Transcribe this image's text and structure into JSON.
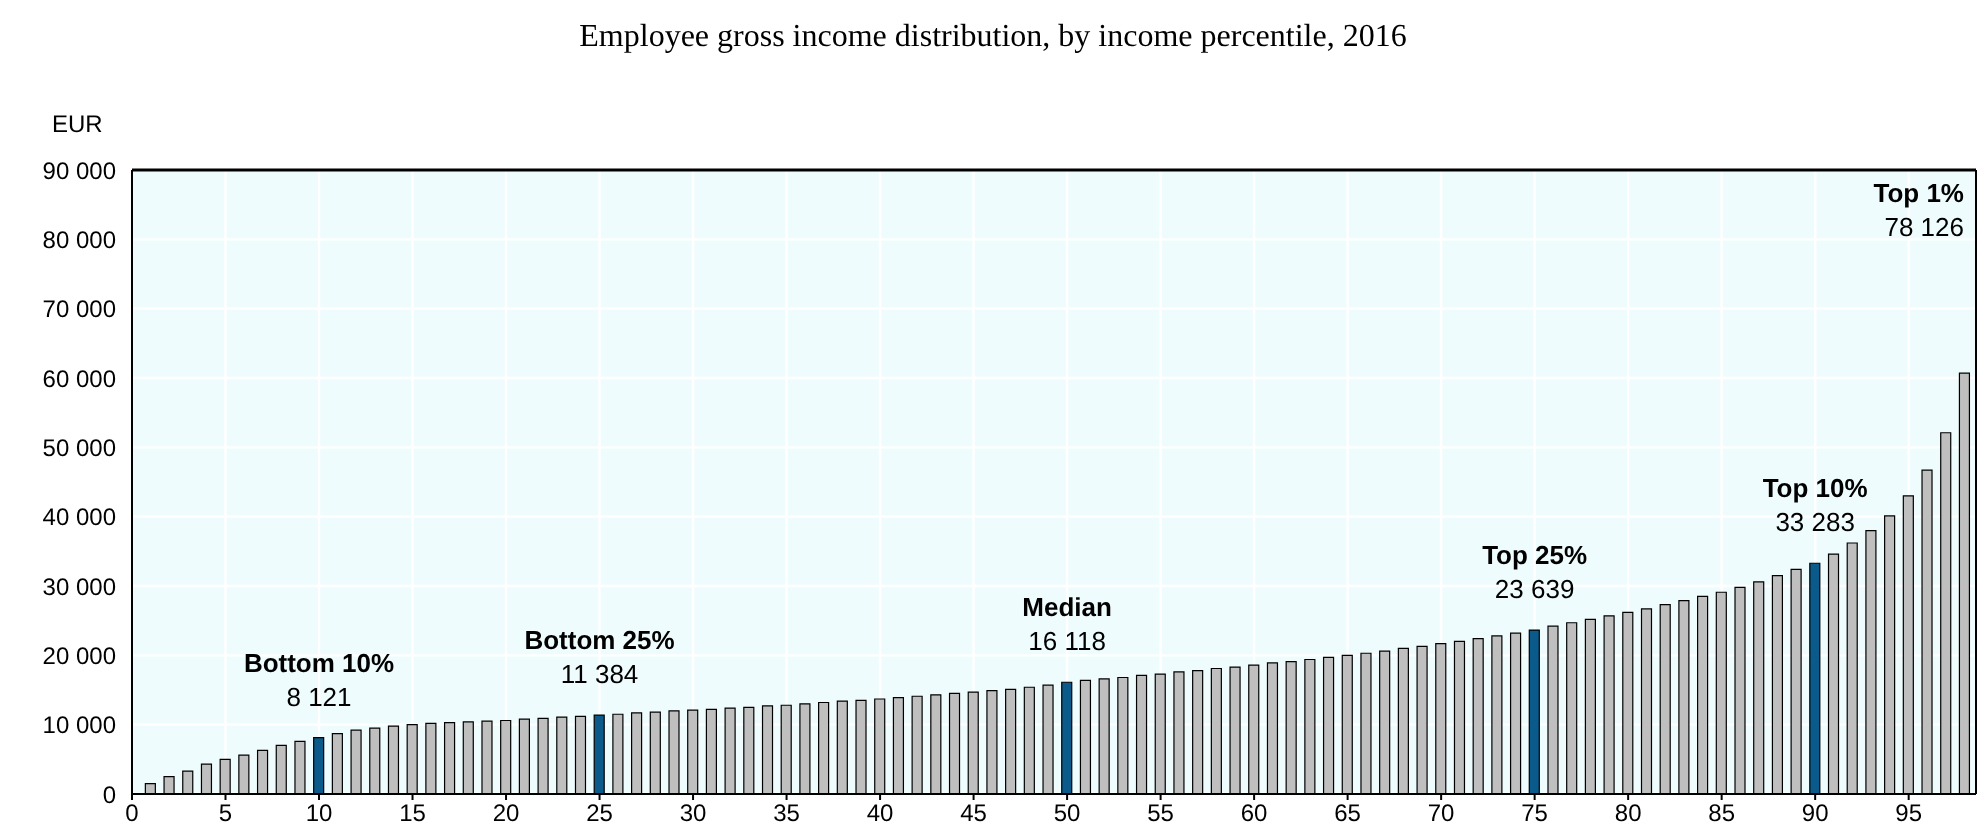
{
  "chart_data": {
    "type": "bar",
    "title": "Employee gross income distribution, by income percentile, 2016",
    "ylabel": "EUR",
    "x": [
      1,
      2,
      3,
      4,
      5,
      6,
      7,
      8,
      9,
      10,
      11,
      12,
      13,
      14,
      15,
      16,
      17,
      18,
      19,
      20,
      21,
      22,
      23,
      24,
      25,
      26,
      27,
      28,
      29,
      30,
      31,
      32,
      33,
      34,
      35,
      36,
      37,
      38,
      39,
      40,
      41,
      42,
      43,
      44,
      45,
      46,
      47,
      48,
      49,
      50,
      51,
      52,
      53,
      54,
      55,
      56,
      57,
      58,
      59,
      60,
      61,
      62,
      63,
      64,
      65,
      66,
      67,
      68,
      69,
      70,
      71,
      72,
      73,
      74,
      75,
      76,
      77,
      78,
      79,
      80,
      81,
      82,
      83,
      84,
      85,
      86,
      87,
      88,
      89,
      90,
      91,
      92,
      93,
      94,
      95,
      96,
      97,
      98
    ],
    "values": [
      1500,
      2500,
      3300,
      4300,
      5000,
      5600,
      6300,
      7000,
      7600,
      8121,
      8700,
      9200,
      9500,
      9800,
      10000,
      10200,
      10300,
      10400,
      10500,
      10600,
      10800,
      10900,
      11100,
      11200,
      11384,
      11500,
      11700,
      11800,
      12000,
      12100,
      12200,
      12400,
      12500,
      12700,
      12800,
      13000,
      13200,
      13400,
      13500,
      13700,
      13900,
      14100,
      14300,
      14500,
      14700,
      14900,
      15100,
      15400,
      15700,
      16118,
      16400,
      16600,
      16800,
      17100,
      17300,
      17600,
      17800,
      18100,
      18300,
      18600,
      18900,
      19100,
      19400,
      19700,
      20000,
      20300,
      20600,
      21000,
      21300,
      21700,
      22000,
      22400,
      22800,
      23200,
      23639,
      24200,
      24700,
      25200,
      25700,
      26200,
      26700,
      27300,
      27900,
      28500,
      29100,
      29800,
      30600,
      31500,
      32400,
      33283,
      34600,
      36200,
      38000,
      40100,
      43000,
      46700,
      52100,
      60700
    ],
    "colors": [
      "#bfbfbf",
      "#bfbfbf",
      "#bfbfbf",
      "#bfbfbf",
      "#bfbfbf",
      "#bfbfbf",
      "#bfbfbf",
      "#bfbfbf",
      "#bfbfbf",
      "#0b5a8c",
      "#bfbfbf",
      "#bfbfbf",
      "#bfbfbf",
      "#bfbfbf",
      "#bfbfbf",
      "#bfbfbf",
      "#bfbfbf",
      "#bfbfbf",
      "#bfbfbf",
      "#bfbfbf",
      "#bfbfbf",
      "#bfbfbf",
      "#bfbfbf",
      "#bfbfbf",
      "#0b5a8c",
      "#bfbfbf",
      "#bfbfbf",
      "#bfbfbf",
      "#bfbfbf",
      "#bfbfbf",
      "#bfbfbf",
      "#bfbfbf",
      "#bfbfbf",
      "#bfbfbf",
      "#bfbfbf",
      "#bfbfbf",
      "#bfbfbf",
      "#bfbfbf",
      "#bfbfbf",
      "#bfbfbf",
      "#bfbfbf",
      "#bfbfbf",
      "#bfbfbf",
      "#bfbfbf",
      "#bfbfbf",
      "#bfbfbf",
      "#bfbfbf",
      "#bfbfbf",
      "#bfbfbf",
      "#0b5a8c",
      "#bfbfbf",
      "#bfbfbf",
      "#bfbfbf",
      "#bfbfbf",
      "#bfbfbf",
      "#bfbfbf",
      "#bfbfbf",
      "#bfbfbf",
      "#bfbfbf",
      "#bfbfbf",
      "#bfbfbf",
      "#bfbfbf",
      "#bfbfbf",
      "#bfbfbf",
      "#bfbfbf",
      "#bfbfbf",
      "#bfbfbf",
      "#bfbfbf",
      "#bfbfbf",
      "#bfbfbf",
      "#bfbfbf",
      "#bfbfbf",
      "#bfbfbf",
      "#bfbfbf",
      "#0b5a8c",
      "#bfbfbf",
      "#bfbfbf",
      "#bfbfbf",
      "#bfbfbf",
      "#bfbfbf",
      "#bfbfbf",
      "#bfbfbf",
      "#bfbfbf",
      "#bfbfbf",
      "#bfbfbf",
      "#bfbfbf",
      "#bfbfbf",
      "#bfbfbf",
      "#bfbfbf",
      "#0b5a8c",
      "#bfbfbf",
      "#bfbfbf",
      "#bfbfbf",
      "#bfbfbf",
      "#bfbfbf",
      "#bfbfbf",
      "#bfbfbf",
      "#bfbfbf"
    ],
    "value_labels": [
      null,
      null,
      null,
      null,
      null,
      null,
      null,
      null,
      null,
      "8 121",
      null,
      null,
      null,
      null,
      null,
      null,
      null,
      null,
      null,
      null,
      null,
      null,
      null,
      null,
      "11 384",
      null,
      null,
      null,
      null,
      null,
      null,
      null,
      null,
      null,
      null,
      null,
      null,
      null,
      null,
      null,
      null,
      null,
      null,
      null,
      null,
      null,
      null,
      null,
      null,
      "16 118",
      null,
      null,
      null,
      null,
      null,
      null,
      null,
      null,
      null,
      null,
      null,
      null,
      null,
      null,
      null,
      null,
      null,
      null,
      null,
      null,
      null,
      null,
      null,
      null,
      "23 639",
      null,
      null,
      null,
      null,
      null,
      null,
      null,
      null,
      null,
      null,
      null,
      null,
      null,
      null,
      "33 283",
      null,
      null,
      null,
      null,
      null,
      null,
      null,
      null
    ],
    "annotations": [
      {
        "text": "Bottom 10%",
        "x": 10,
        "y": 8121
      },
      {
        "text": "Bottom 25%",
        "x": 25,
        "y": 11384
      },
      {
        "text": "Median",
        "x": 50,
        "y": 16118
      },
      {
        "text": "Top 25%",
        "x": 75,
        "y": 23639
      },
      {
        "text": "Top 10%",
        "x": 90,
        "y": 33283
      },
      "Top 1%",
      "78 126"
    ],
    "xlim": [
      0,
      98.6
    ],
    "xticks": [
      0,
      5,
      10,
      15,
      20,
      25,
      30,
      35,
      40,
      45,
      50,
      55,
      60,
      65,
      70,
      75,
      80,
      85,
      90,
      95
    ],
    "ylim": [
      0,
      90000
    ],
    "yticks": [
      {
        "value": 0,
        "label": "0"
      },
      {
        "value": 10000,
        "label": "10 000"
      },
      {
        "value": 20000,
        "label": "20 000"
      },
      {
        "value": 30000,
        "label": "30 000"
      },
      {
        "value": 40000,
        "label": "40 000"
      },
      {
        "value": 50000,
        "label": "50 000"
      },
      {
        "value": 60000,
        "label": "60 000"
      },
      {
        "value": 70000,
        "label": "70 000"
      },
      {
        "value": 80000,
        "label": "80 000"
      },
      {
        "value": 90000,
        "label": "90 000"
      }
    ],
    "grid": true
  }
}
